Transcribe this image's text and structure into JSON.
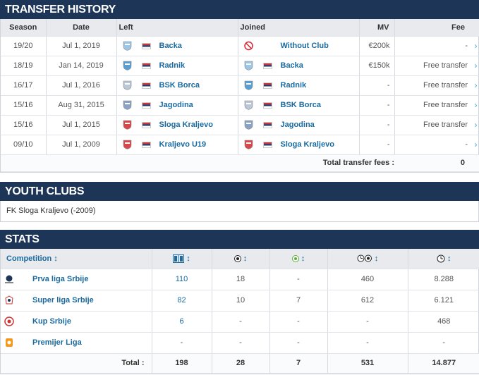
{
  "transfer": {
    "title": "TRANSFER HISTORY",
    "headers": {
      "season": "Season",
      "date": "Date",
      "left": "Left",
      "joined": "Joined",
      "mv": "MV",
      "fee": "Fee"
    },
    "rows": [
      {
        "season": "19/20",
        "date": "Jul 1, 2019",
        "left": "Backa",
        "joined": "Without Club",
        "mv": "€200k",
        "fee": "-"
      },
      {
        "season": "18/19",
        "date": "Jan 14, 2019",
        "left": "Radnik",
        "joined": "Backa",
        "mv": "€150k",
        "fee": "Free transfer"
      },
      {
        "season": "16/17",
        "date": "Jul 1, 2016",
        "left": "BSK Borca",
        "joined": "Radnik",
        "mv": "-",
        "fee": "Free transfer"
      },
      {
        "season": "15/16",
        "date": "Aug 31, 2015",
        "left": "Jagodina",
        "joined": "BSK Borca",
        "mv": "-",
        "fee": "Free transfer"
      },
      {
        "season": "15/16",
        "date": "Jul 1, 2015",
        "left": "Sloga Kraljevo",
        "joined": "Jagodina",
        "mv": "-",
        "fee": "Free transfer"
      },
      {
        "season": "09/10",
        "date": "Jul 1, 2009",
        "left": "Kraljevo U19",
        "joined": "Sloga Kraljevo",
        "mv": "-",
        "fee": "-"
      }
    ],
    "total_label": "Total transfer fees :",
    "total_value": "0",
    "chevron": "›"
  },
  "youth": {
    "title": "YOUTH CLUBS",
    "text": "FK Sloga Kraljevo (-2009)"
  },
  "stats": {
    "title": "STATS",
    "competition_label": "Competition",
    "sort_arrow": "↕",
    "rows": [
      {
        "name": "Prva liga Srbije",
        "apps": "110",
        "goals": "18",
        "assists": "-",
        "minutes_per_goal": "460",
        "minutes": "8.288"
      },
      {
        "name": "Super liga Srbije",
        "apps": "82",
        "goals": "10",
        "assists": "7",
        "minutes_per_goal": "612",
        "minutes": "6.121"
      },
      {
        "name": "Kup Srbije",
        "apps": "6",
        "goals": "-",
        "assists": "-",
        "minutes_per_goal": "-",
        "minutes": "468"
      },
      {
        "name": "Premijer Liga",
        "apps": "-",
        "goals": "-",
        "assists": "-",
        "minutes_per_goal": "-",
        "minutes": "-"
      }
    ],
    "total_label": "Total :",
    "totals": {
      "apps": "198",
      "goals": "28",
      "assists": "7",
      "minutes_per_goal": "531",
      "minutes": "14.877"
    }
  },
  "colors": {
    "header_bg": "#1d3557",
    "link": "#1a6aa0",
    "chevron": "#4aa8d8"
  },
  "icons": [
    "club-crest-icon",
    "serbia-flag-icon",
    "no-club-icon",
    "appearances-icon",
    "ball-icon",
    "assist-ball-icon",
    "minutes-per-goal-icon",
    "clock-icon"
  ]
}
